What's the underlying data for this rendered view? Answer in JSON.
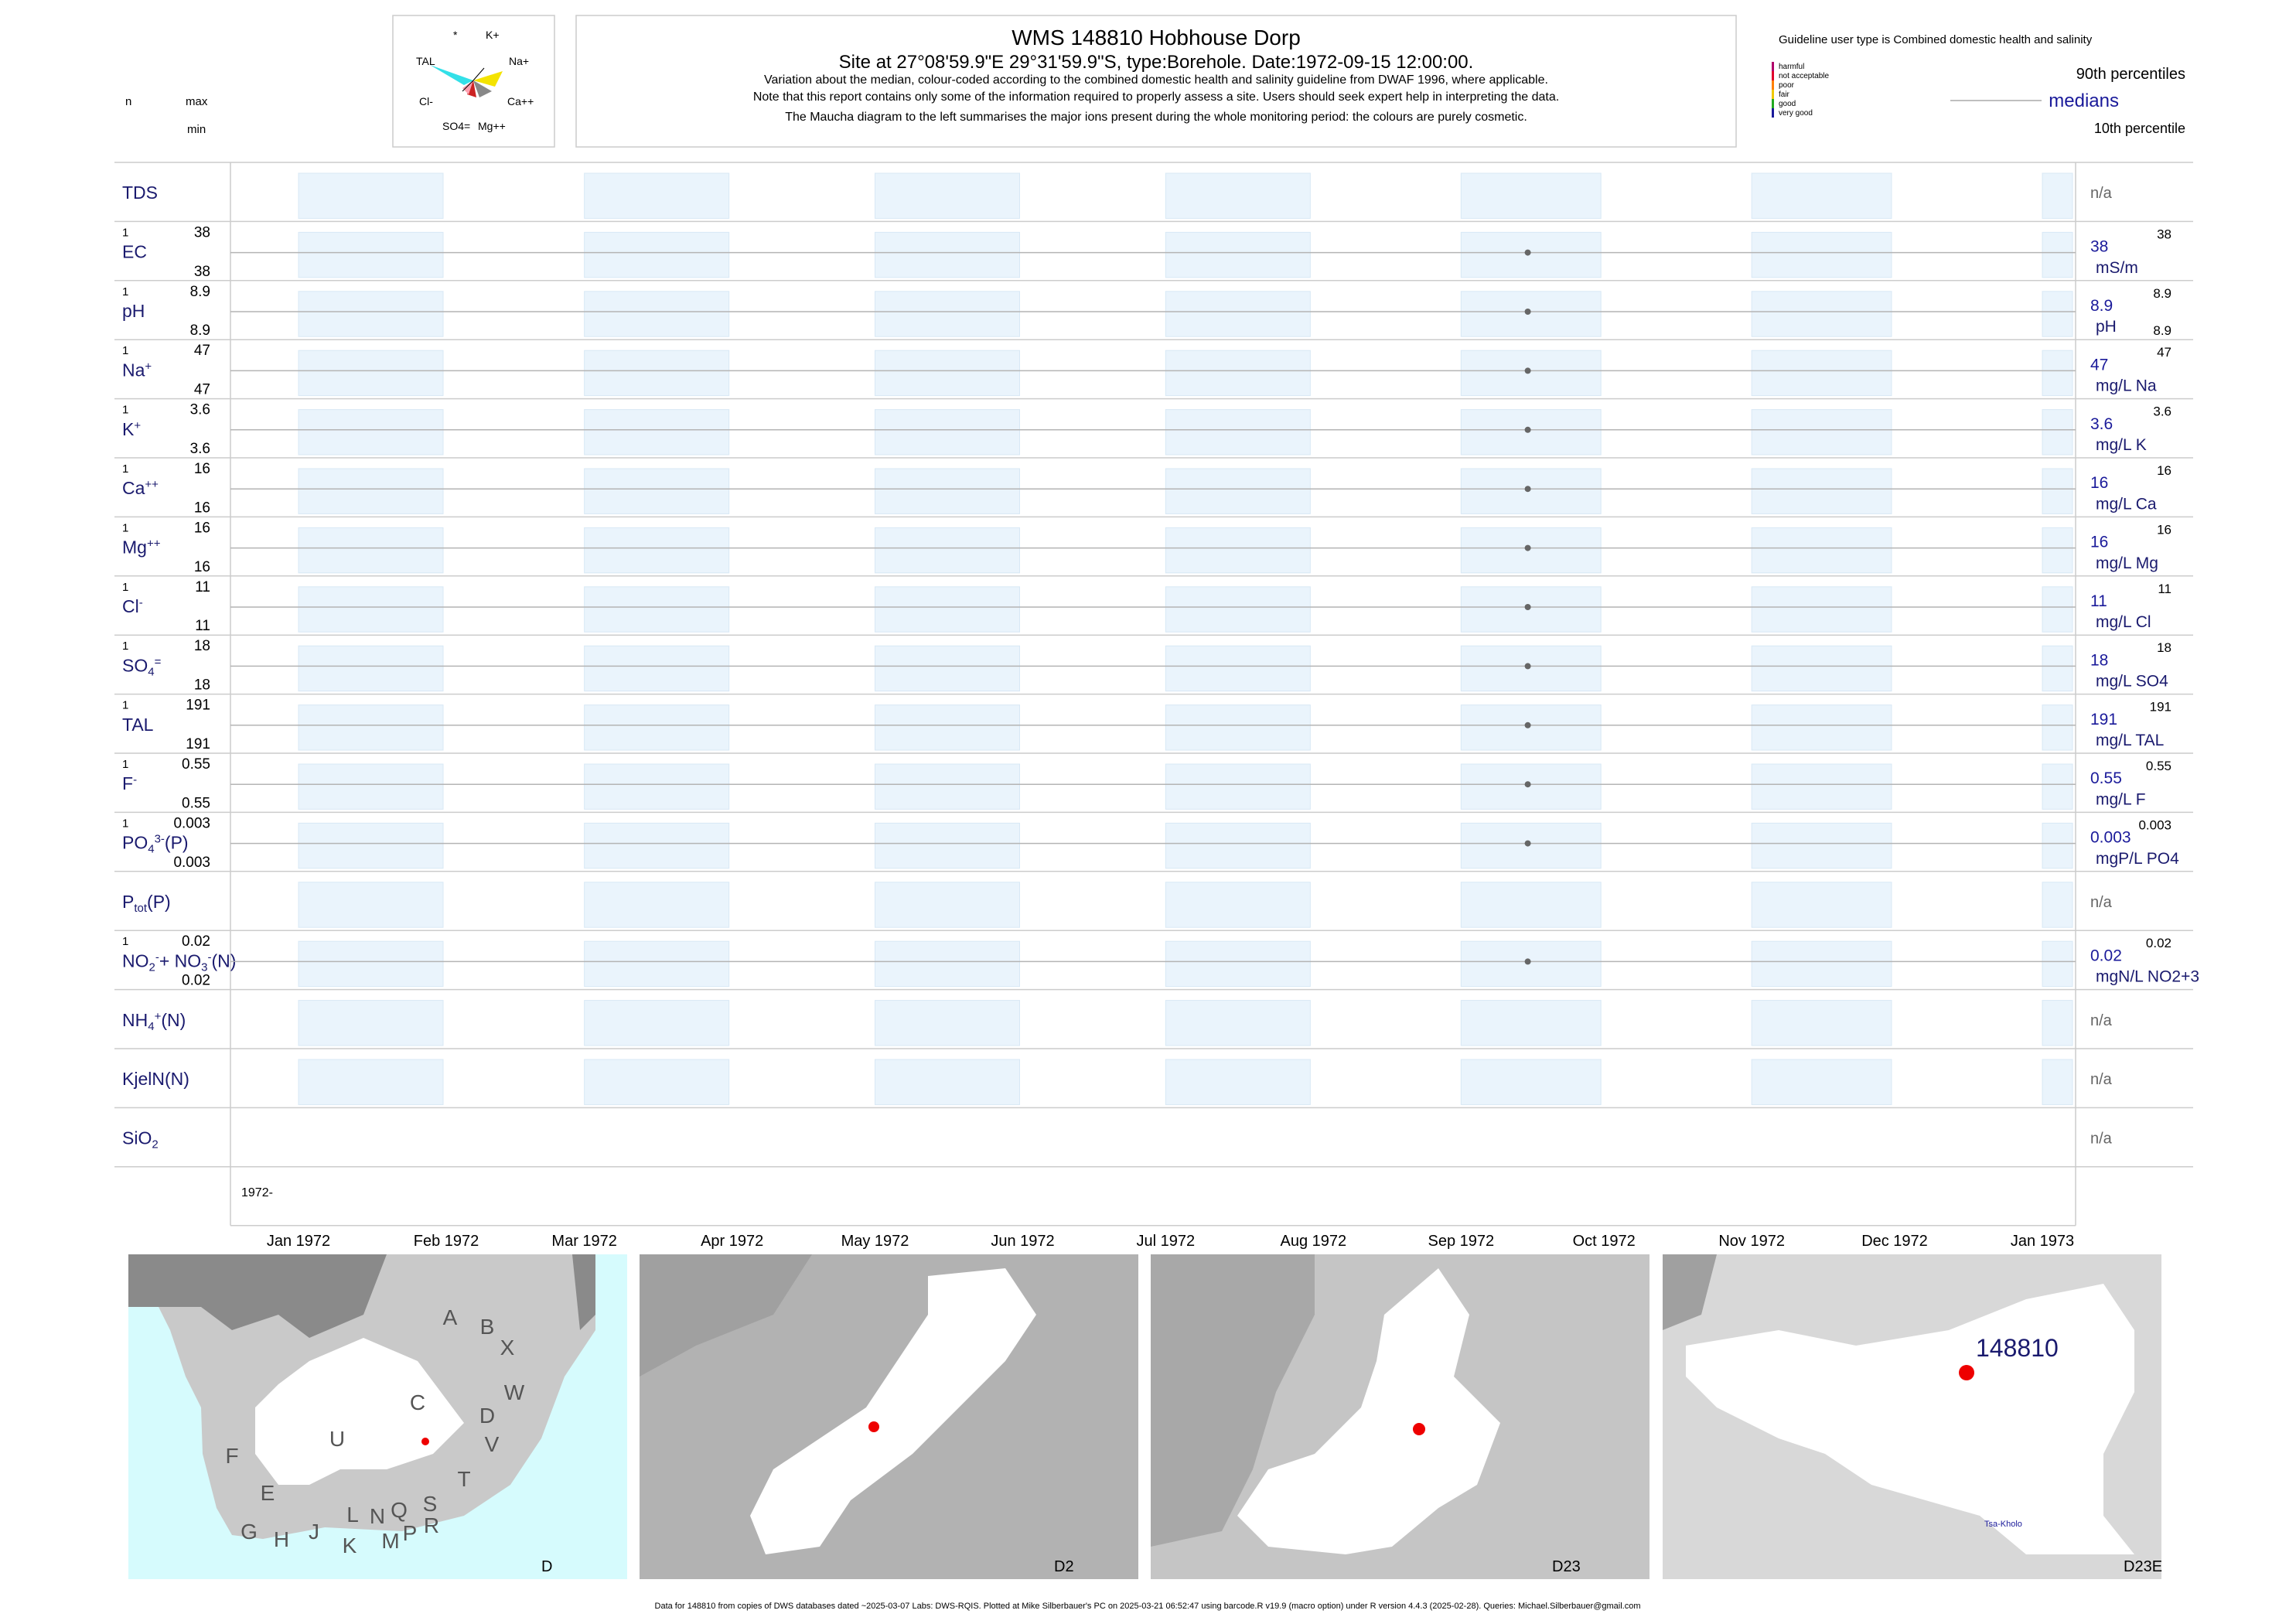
{
  "header": {
    "title": "WMS 148810  Hobhouse Dorp",
    "subtitle": "Site at 27°08'59.9\"E 29°31'59.9\"S, type:Borehole. Date:1972-09-15 12:00:00.",
    "notes": [
      "Variation about the median,  colour-coded according to the combined domestic health and salinity guideline from DWAF 1996, where applicable.",
      "Note that this report contains only some of the information required to properly assess a site. Users should seek expert help in interpreting the data.",
      "The Maucha diagram to the left summarises the major ions present during the whole monitoring period: the colours are purely cosmetic."
    ]
  },
  "left_header": {
    "n": "n",
    "max": "max",
    "min": "min"
  },
  "maucha": {
    "labels": [
      "*",
      "K+",
      "TAL",
      "Na+",
      "Cl-",
      "Ca++",
      "SO4=",
      "Mg++"
    ]
  },
  "guideline": {
    "title": "Guideline user type is Combined domestic health and salinity",
    "categories": [
      {
        "name": "harmful",
        "color": "#b0006a"
      },
      {
        "name": "not acceptable",
        "color": "#e0002a"
      },
      {
        "name": "poor",
        "color": "#ff7f00"
      },
      {
        "name": "fair",
        "color": "#f0c800"
      },
      {
        "name": "good",
        "color": "#22aa22"
      },
      {
        "name": "very good",
        "color": "#1a1a9a"
      }
    ],
    "p90": "90th percentiles",
    "medians": "medians",
    "p10": "10th percentile"
  },
  "chart_data": {
    "type": "scatter",
    "x_axis": {
      "ticks": [
        "Jan 1972",
        "Feb 1972",
        "Mar 1972",
        "Apr 1972",
        "May 1972",
        "Jun 1972",
        "Jul 1972",
        "Aug 1972",
        "Sep 1972",
        "Oct 1972",
        "Nov 1972",
        "Dec 1972",
        "Jan 1973"
      ],
      "year_label": "1972-"
    },
    "sample_date": "1972-09-15",
    "rows": [
      {
        "name": "TDS",
        "label": "TDS",
        "n": "",
        "max": "",
        "min": "",
        "value": null,
        "right_value": "",
        "right_unit": "",
        "right_max": "",
        "right_min": "",
        "na": "n/a"
      },
      {
        "name": "EC",
        "label": "EC",
        "n": "1",
        "max": "38",
        "min": "38",
        "value": 38,
        "right_value": "38",
        "right_unit": "mS/m",
        "right_max": "38",
        "right_min": "",
        "na": ""
      },
      {
        "name": "pH",
        "label": "pH",
        "n": "1",
        "max": "8.9",
        "min": "8.9",
        "value": 8.9,
        "right_value": "8.9",
        "right_unit": "pH",
        "right_max": "8.9",
        "right_min": "8.9",
        "na": ""
      },
      {
        "name": "Na",
        "label": "Na",
        "sup": "+",
        "n": "1",
        "max": "47",
        "min": "47",
        "value": 47,
        "right_value": "47",
        "right_unit": "mg/L Na",
        "right_max": "47",
        "right_min": "",
        "na": ""
      },
      {
        "name": "K",
        "label": "K",
        "sup": "+",
        "n": "1",
        "max": "3.6",
        "min": "3.6",
        "value": 3.6,
        "right_value": "3.6",
        "right_unit": "mg/L K",
        "right_max": "3.6",
        "right_min": "",
        "na": ""
      },
      {
        "name": "Ca",
        "label": "Ca",
        "sup": "++",
        "n": "1",
        "max": "16",
        "min": "16",
        "value": 16,
        "right_value": "16",
        "right_unit": "mg/L Ca",
        "right_max": "16",
        "right_min": "",
        "na": ""
      },
      {
        "name": "Mg",
        "label": "Mg",
        "sup": "++",
        "n": "1",
        "max": "16",
        "min": "16",
        "value": 16,
        "right_value": "16",
        "right_unit": "mg/L Mg",
        "right_max": "16",
        "right_min": "",
        "na": ""
      },
      {
        "name": "Cl",
        "label": "Cl",
        "sup": "-",
        "n": "1",
        "max": "11",
        "min": "11",
        "value": 11,
        "right_value": "11",
        "right_unit": "mg/L Cl",
        "right_max": "11",
        "right_min": "",
        "na": ""
      },
      {
        "name": "SO4",
        "label": "SO",
        "sub": "4",
        "sup": "=",
        "n": "1",
        "max": "18",
        "min": "18",
        "value": 18,
        "right_value": "18",
        "right_unit": "mg/L SO4",
        "right_max": "18",
        "right_min": "",
        "na": ""
      },
      {
        "name": "TAL",
        "label": "TAL",
        "n": "1",
        "max": "191",
        "min": "191",
        "value": 191,
        "right_value": "191",
        "right_unit": "mg/L TAL",
        "right_max": "191",
        "right_min": "",
        "na": ""
      },
      {
        "name": "F",
        "label": "F",
        "sup": "-",
        "n": "1",
        "max": "0.55",
        "min": "0.55",
        "value": 0.55,
        "right_value": "0.55",
        "right_unit": "mg/L F",
        "right_max": "0.55",
        "right_min": "",
        "na": ""
      },
      {
        "name": "PO4",
        "label": "PO",
        "sub": "4",
        "sup": "3-",
        "suffix": "(P)",
        "n": "1",
        "max": "0.003",
        "min": "0.003",
        "value": 0.003,
        "right_value": "0.003",
        "right_unit": "mgP/L PO4",
        "right_max": "0.003",
        "right_min": "",
        "na": ""
      },
      {
        "name": "Ptot",
        "label": "P",
        "sub": "tot",
        "suffix": "(P)",
        "n": "",
        "max": "",
        "min": "",
        "value": null,
        "right_value": "",
        "right_unit": "",
        "right_max": "",
        "right_min": "",
        "na": "n/a"
      },
      {
        "name": "NO2NO3",
        "label": "NO",
        "sub": "2",
        "sup": "-",
        "label2": "+ NO",
        "sub2": "3",
        "sup2": "-",
        "suffix": "(N)",
        "n": "1",
        "max": "0.02",
        "min": "0.02",
        "value": 0.02,
        "right_value": "0.02",
        "right_unit": "mgN/L NO2+3",
        "right_max": "0.02",
        "right_min": "",
        "na": ""
      },
      {
        "name": "NH4",
        "label": "NH",
        "sub": "4",
        "sup": "+",
        "suffix": "(N)",
        "n": "",
        "max": "",
        "min": "",
        "value": null,
        "right_value": "",
        "right_unit": "",
        "right_max": "",
        "right_min": "",
        "na": "n/a"
      },
      {
        "name": "KjelN",
        "label": "KjelN(N)",
        "n": "",
        "max": "",
        "min": "",
        "value": null,
        "right_value": "",
        "right_unit": "",
        "right_max": "",
        "right_min": "",
        "na": "n/a"
      },
      {
        "name": "SiO2",
        "label": "SiO",
        "sub": "2",
        "n": "",
        "max": "",
        "min": "",
        "value": null,
        "right_value": "",
        "right_unit": "",
        "right_max": "",
        "right_min": "",
        "na": "n/a"
      }
    ]
  },
  "maps": [
    {
      "label": "D",
      "regions": [
        "A",
        "B",
        "X",
        "C",
        "W",
        "D",
        "V",
        "U",
        "F",
        "T",
        "E",
        "L",
        "N",
        "Q",
        "S",
        "G",
        "H",
        "J",
        "K",
        "M",
        "P",
        "R"
      ]
    },
    {
      "label": "D2"
    },
    {
      "label": "D23"
    },
    {
      "label": "D23E",
      "site": "148810",
      "place": "Tsa-Kholo"
    }
  ],
  "footer": "Data for 148810 from copies of DWS databases dated ~2025-03-07 Labs: DWS-RQIS. Plotted at Mike Silberbauer's PC on 2025-03-21 06:52:47 using barcode.R v19.9 (macro option) under R version 4.4.3 (2025-02-28). Queries: Michael.Silberbauer@gmail.com"
}
